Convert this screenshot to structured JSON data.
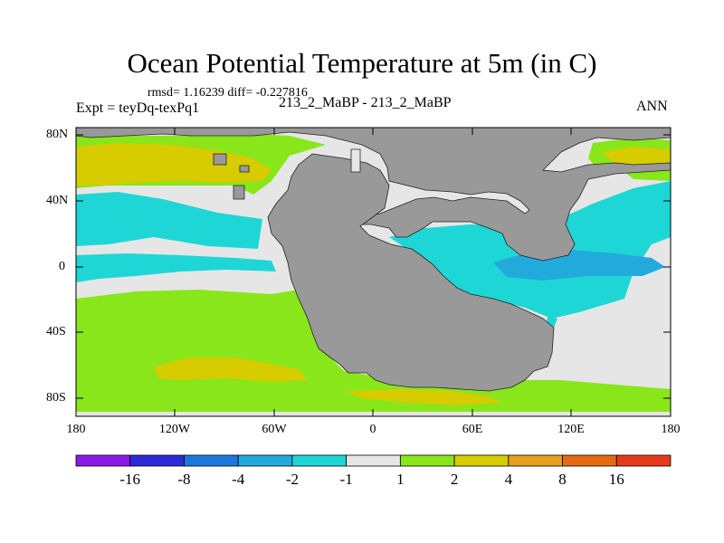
{
  "title": "Ocean Potential Temperature at 5m (in C)",
  "stats": "rmsd= 1.16239 diff= -0.227816",
  "expt": "Expt = teyDq-texPq1",
  "case": "213_2_MaBP - 213_2_MaBP",
  "season": "ANN",
  "lat_labels": [
    "80N",
    "40N",
    "0",
    "40S",
    "80S"
  ],
  "lon_labels": [
    "180",
    "120W",
    "60W",
    "0",
    "60E",
    "120E",
    "180"
  ],
  "colorbar": {
    "colors": [
      "#8a1be6",
      "#2b2bd9",
      "#1b78e0",
      "#22aadd",
      "#1fd6d6",
      "#e6e6e6",
      "#88e61b",
      "#d6cc00",
      "#e6a01b",
      "#e66a10",
      "#e63a1b"
    ],
    "labels": [
      "-16",
      "-8",
      "-4",
      "-2",
      "-1",
      "1",
      "2",
      "4",
      "8",
      "16"
    ]
  },
  "land_color": "#999999"
}
